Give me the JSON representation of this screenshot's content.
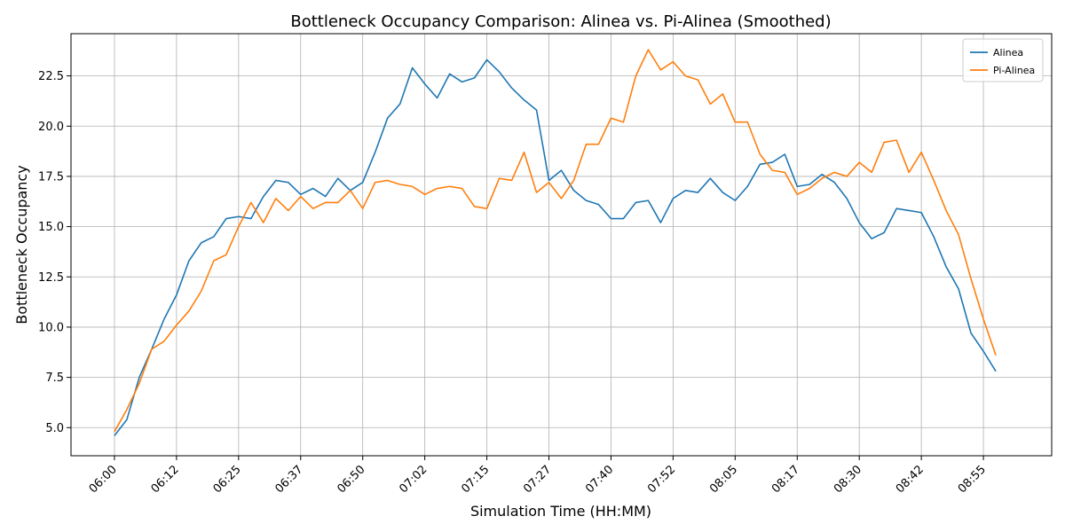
{
  "chart_data": {
    "type": "line",
    "title": "Bottleneck Occupancy Comparison: Alinea vs. Pi-Alinea (Smoothed)",
    "xlabel": "Simulation Time (HH:MM)",
    "ylabel": "Bottleneck Occupancy",
    "x_tick_labels": [
      "06:00",
      "06:12",
      "06:25",
      "06:37",
      "06:50",
      "07:02",
      "07:15",
      "07:27",
      "07:40",
      "07:52",
      "08:05",
      "08:17",
      "08:30",
      "08:42",
      "08:55"
    ],
    "x_tick_index": [
      0,
      5,
      10,
      15,
      20,
      25,
      30,
      35,
      40,
      45,
      50,
      55,
      60,
      65,
      70
    ],
    "y_ticks": [
      5.0,
      7.5,
      10.0,
      12.5,
      15.0,
      17.5,
      20.0,
      22.5
    ],
    "y_tick_labels": [
      "5.0",
      "7.5",
      "10.0",
      "12.5",
      "15.0",
      "17.5",
      "20.0",
      "22.5"
    ],
    "ylim": [
      3.6,
      24.6
    ],
    "xlim_index": [
      -3.5,
      75.5
    ],
    "grid": true,
    "legend_position": "top-right",
    "series": [
      {
        "name": "Alinea",
        "color": "#1f77b4",
        "values": [
          4.6,
          5.4,
          7.5,
          8.9,
          10.4,
          11.6,
          13.3,
          14.2,
          14.5,
          15.4,
          15.5,
          15.4,
          16.5,
          17.3,
          17.2,
          16.6,
          16.9,
          16.5,
          17.4,
          16.8,
          17.2,
          18.7,
          20.4,
          21.1,
          22.9,
          22.1,
          21.4,
          22.6,
          22.2,
          22.4,
          23.3,
          22.7,
          21.9,
          21.3,
          20.8,
          17.3,
          17.8,
          16.8,
          16.3,
          16.1,
          15.4,
          15.4,
          16.2,
          16.3,
          15.2,
          16.4,
          16.8,
          16.7,
          17.4,
          16.7,
          16.3,
          17.0,
          18.1,
          18.2,
          18.6,
          17.0,
          17.1,
          17.6,
          17.2,
          16.4,
          15.2,
          14.4,
          14.7,
          15.9,
          15.8,
          15.7,
          14.5,
          13.0,
          11.9,
          9.7,
          8.8,
          7.8
        ]
      },
      {
        "name": "Pi-Alinea",
        "color": "#ff7f0e",
        "values": [
          4.8,
          5.9,
          7.2,
          8.9,
          9.3,
          10.1,
          10.8,
          11.8,
          13.3,
          13.6,
          15.0,
          16.2,
          15.2,
          16.4,
          15.8,
          16.5,
          15.9,
          16.2,
          16.2,
          16.8,
          15.9,
          17.2,
          17.3,
          17.1,
          17.0,
          16.6,
          16.9,
          17.0,
          16.9,
          16.0,
          15.9,
          17.4,
          17.3,
          18.7,
          16.7,
          17.2,
          16.4,
          17.3,
          19.1,
          19.1,
          20.4,
          20.2,
          22.5,
          23.8,
          22.8,
          23.2,
          22.5,
          22.3,
          21.1,
          21.6,
          20.2,
          20.2,
          18.6,
          17.8,
          17.7,
          16.6,
          16.9,
          17.4,
          17.7,
          17.5,
          18.2,
          17.7,
          19.2,
          19.3,
          17.7,
          18.7,
          17.3,
          15.8,
          14.6,
          12.4,
          10.4,
          8.6
        ]
      }
    ]
  }
}
